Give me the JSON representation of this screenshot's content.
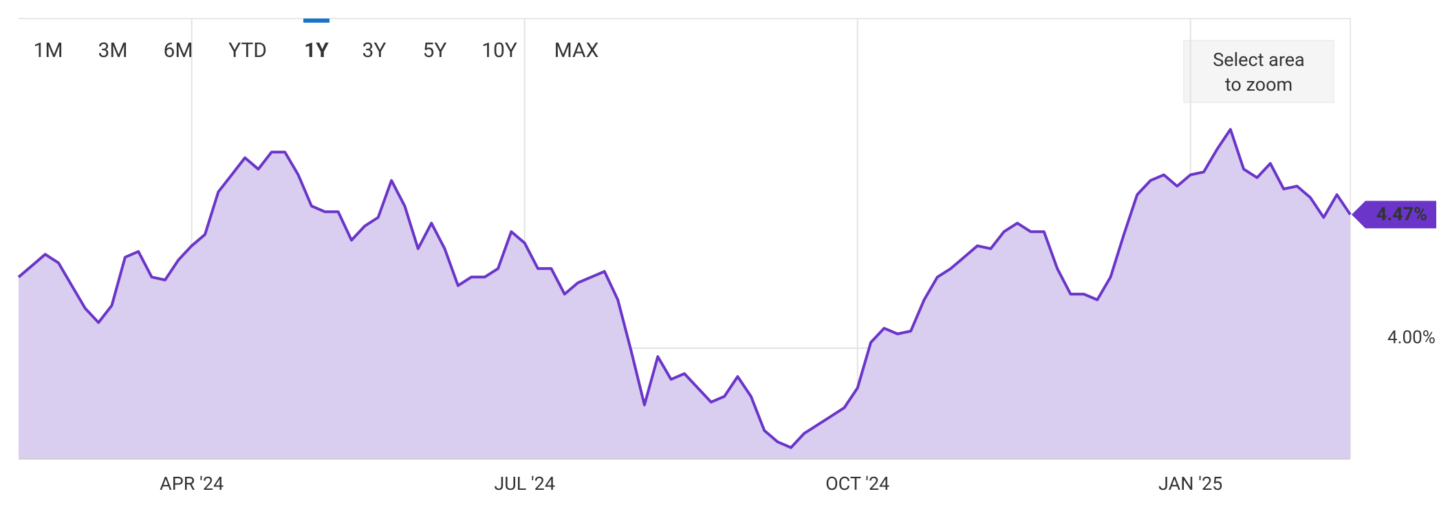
{
  "range_buttons": {
    "items": [
      "1M",
      "3M",
      "6M",
      "YTD",
      "1Y",
      "3Y",
      "5Y",
      "10Y",
      "MAX"
    ],
    "active": "1Y",
    "disabled": [
      "10Y",
      "MAX"
    ]
  },
  "zoom_button": {
    "lines": [
      "Select area",
      "to zoom"
    ]
  },
  "chart_data": {
    "type": "area",
    "color": "#6a35c8",
    "fill": "#d9cdf0",
    "grid": true,
    "categories": [
      null,
      null,
      null,
      null,
      null,
      null,
      null,
      null,
      null,
      null,
      null,
      null,
      null,
      "APR '24",
      null,
      null,
      null,
      null,
      null,
      null,
      null,
      null,
      null,
      null,
      null,
      null,
      null,
      null,
      null,
      null,
      null,
      null,
      null,
      null,
      null,
      null,
      null,
      null,
      "JUL '24",
      null,
      null,
      null,
      null,
      null,
      null,
      null,
      null,
      null,
      null,
      null,
      null,
      null,
      null,
      null,
      null,
      null,
      null,
      null,
      null,
      null,
      null,
      null,
      null,
      "OCT '24",
      null,
      null,
      null,
      null,
      null,
      null,
      null,
      null,
      null,
      null,
      null,
      null,
      null,
      null,
      null,
      null,
      null,
      null,
      null,
      null,
      null,
      null,
      null,
      null,
      "JAN '25",
      null,
      null,
      null,
      null,
      null,
      null,
      null,
      null,
      null,
      null,
      null,
      null
    ],
    "values": [
      4.25,
      4.29,
      4.33,
      4.3,
      4.22,
      4.14,
      4.09,
      4.15,
      4.32,
      4.34,
      4.25,
      4.24,
      4.31,
      4.36,
      4.4,
      4.55,
      4.61,
      4.67,
      4.63,
      4.69,
      4.69,
      4.61,
      4.5,
      4.48,
      4.48,
      4.38,
      4.43,
      4.46,
      4.59,
      4.5,
      4.35,
      4.44,
      4.35,
      4.22,
      4.25,
      4.25,
      4.28,
      4.41,
      4.37,
      4.28,
      4.28,
      4.19,
      4.23,
      4.25,
      4.27,
      4.17,
      3.99,
      3.8,
      3.97,
      3.89,
      3.91,
      3.86,
      3.81,
      3.83,
      3.9,
      3.83,
      3.71,
      3.67,
      3.65,
      3.7,
      3.73,
      3.76,
      3.79,
      3.86,
      4.02,
      4.07,
      4.05,
      4.06,
      4.17,
      4.25,
      4.28,
      4.32,
      4.36,
      4.35,
      4.41,
      4.44,
      4.41,
      4.41,
      4.28,
      4.19,
      4.19,
      4.17,
      4.25,
      4.4,
      4.54,
      4.59,
      4.61,
      4.57,
      4.61,
      4.62,
      4.7,
      4.77,
      4.63,
      4.6,
      4.65,
      4.56,
      4.57,
      4.53,
      4.46,
      4.54,
      4.47
    ],
    "last_value_label": "4.47%",
    "ylim": [
      3.61,
      5.16
    ],
    "yticks": [
      {
        "value": 4,
        "label": "4.00%"
      }
    ]
  }
}
